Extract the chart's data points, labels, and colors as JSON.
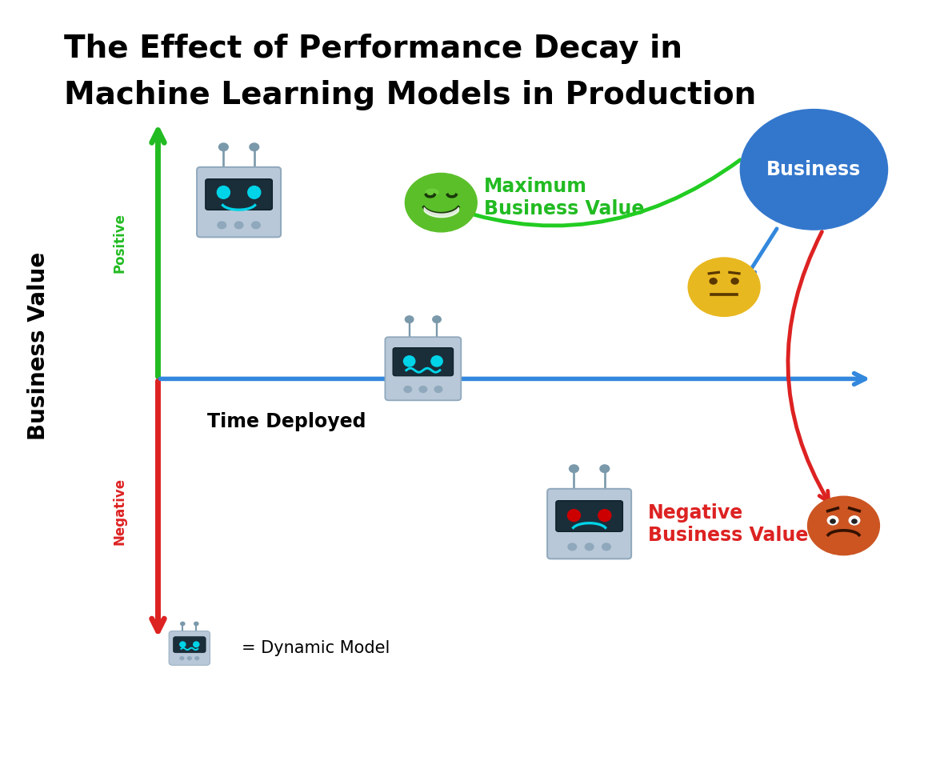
{
  "title_line1": "The Effect of Performance Decay in",
  "title_line2": "Machine Learning Models in Production",
  "title_fontsize": 28,
  "title_fontweight": "bold",
  "bg_color": "#ffffff",
  "axis_color_positive": "#22bb22",
  "axis_color_negative": "#dd2222",
  "axis_color_horizontal": "#3388dd",
  "axis_label": "Business Value",
  "axis_label_fontsize": 20,
  "positive_label": "Positive",
  "negative_label": "Negative",
  "positive_color": "#22bb22",
  "negative_color": "#dd2222",
  "time_deployed_label": "Time Deployed",
  "time_deployed_fontsize": 17,
  "max_bv_label": "Maximum\nBusiness Value",
  "max_bv_color": "#22bb22",
  "max_bv_fontsize": 17,
  "neg_bv_label": "Negative\nBusiness Value",
  "neg_bv_color": "#dd2222",
  "neg_bv_fontsize": 17,
  "business_circle_color": "#3377cc",
  "business_circle_text": "Business",
  "business_circle_fontsize": 17,
  "legend_label": "= Dynamic Model",
  "legend_fontsize": 15,
  "green_arrow_color": "#22cc22",
  "blue_arrow_color": "#3388dd",
  "red_arrow_color": "#dd2222"
}
